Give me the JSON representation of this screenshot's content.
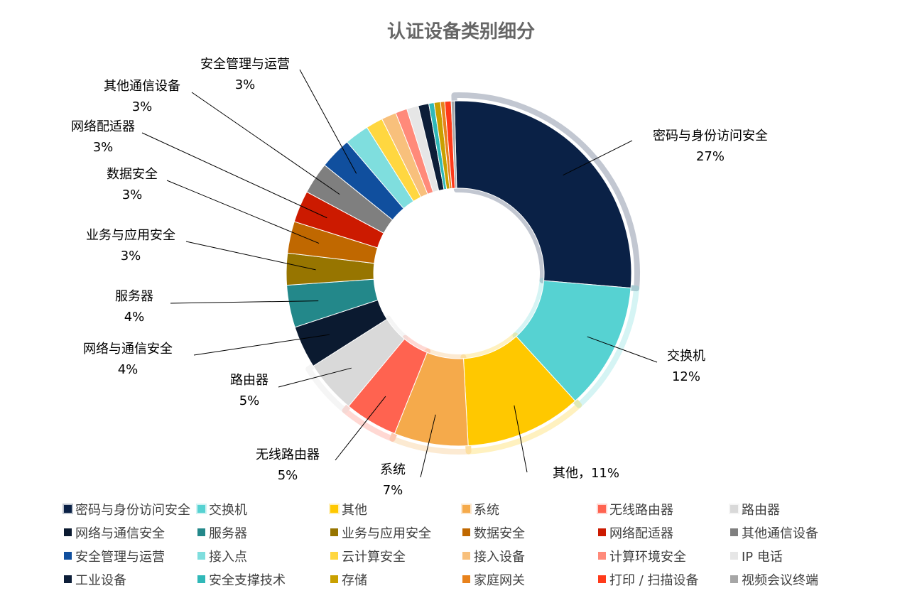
{
  "chart_data": {
    "type": "pie",
    "variant": "donut",
    "title": "认证设备类别细分",
    "legend_position": "bottom",
    "series": [
      {
        "name": "密码与身份访问安全",
        "value": 27,
        "label_line1": "密码与身份访问安全",
        "label_line2": "27%",
        "color": "#0a2146",
        "highlight": true
      },
      {
        "name": "交换机",
        "value": 12,
        "label_line1": "交换机",
        "label_line2": "12%",
        "color": "#56d2d2",
        "highlight": true
      },
      {
        "name": "其他",
        "value": 11,
        "label_line1": "其他，11%",
        "label_line2": "",
        "color": "#ffc800",
        "highlight": true
      },
      {
        "name": "系统",
        "value": 7,
        "label_line1": "系统",
        "label_line2": "7%",
        "color": "#f5aa4b",
        "highlight": true
      },
      {
        "name": "无线路由器",
        "value": 5,
        "label_line1": "无线路由器",
        "label_line2": "5%",
        "color": "#ff6350",
        "highlight": true
      },
      {
        "name": "路由器",
        "value": 5,
        "label_line1": "路由器",
        "label_line2": "5%",
        "color": "#d9d9d9",
        "highlight": true
      },
      {
        "name": "网络与通信安全",
        "value": 4,
        "label_line1": "网络与通信安全",
        "label_line2": "4%",
        "color": "#0b1a30"
      },
      {
        "name": "服务器",
        "value": 4,
        "label_line1": "服务器",
        "label_line2": "4%",
        "color": "#23888a"
      },
      {
        "name": "业务与应用安全",
        "value": 3,
        "label_line1": "业务与应用安全",
        "label_line2": "3%",
        "color": "#977500"
      },
      {
        "name": "数据安全",
        "value": 3,
        "label_line1": "数据安全",
        "label_line2": "3%",
        "color": "#c06800"
      },
      {
        "name": "网络配适器",
        "value": 3,
        "label_line1": "网络配适器",
        "label_line2": "3%",
        "color": "#cc1a00"
      },
      {
        "name": "其他通信设备",
        "value": 3,
        "label_line1": "其他通信设备",
        "label_line2": "3%",
        "color": "#7f7f7f"
      },
      {
        "name": "安全管理与运营",
        "value": 3,
        "label_line1": "安全管理与运营",
        "label_line2": "3%",
        "color": "#104f9e"
      },
      {
        "name": "接入点",
        "value": 2.3,
        "color": "#7fdede"
      },
      {
        "name": "云计算安全",
        "value": 1.6,
        "color": "#ffd740"
      },
      {
        "name": "接入设备",
        "value": 1.4,
        "color": "#f8c07c"
      },
      {
        "name": "计算环境安全",
        "value": 1.1,
        "color": "#ff8a7a"
      },
      {
        "name": "IP 电话",
        "value": 1.1,
        "color": "#e6e6e6"
      },
      {
        "name": "工业设备",
        "value": 1.0,
        "color": "#0d1e38"
      },
      {
        "name": "安全支撑技术",
        "value": 0.5,
        "color": "#30b8b8"
      },
      {
        "name": "存储",
        "value": 0.6,
        "color": "#c9a000"
      },
      {
        "name": "家庭网关",
        "value": 0.4,
        "color": "#e8821c"
      },
      {
        "name": "打印 / 扫描设备",
        "value": 0.6,
        "color": "#ff3a1a"
      },
      {
        "name": "视频会议终端",
        "value": 0.3,
        "color": "#a6a6a6"
      }
    ]
  }
}
